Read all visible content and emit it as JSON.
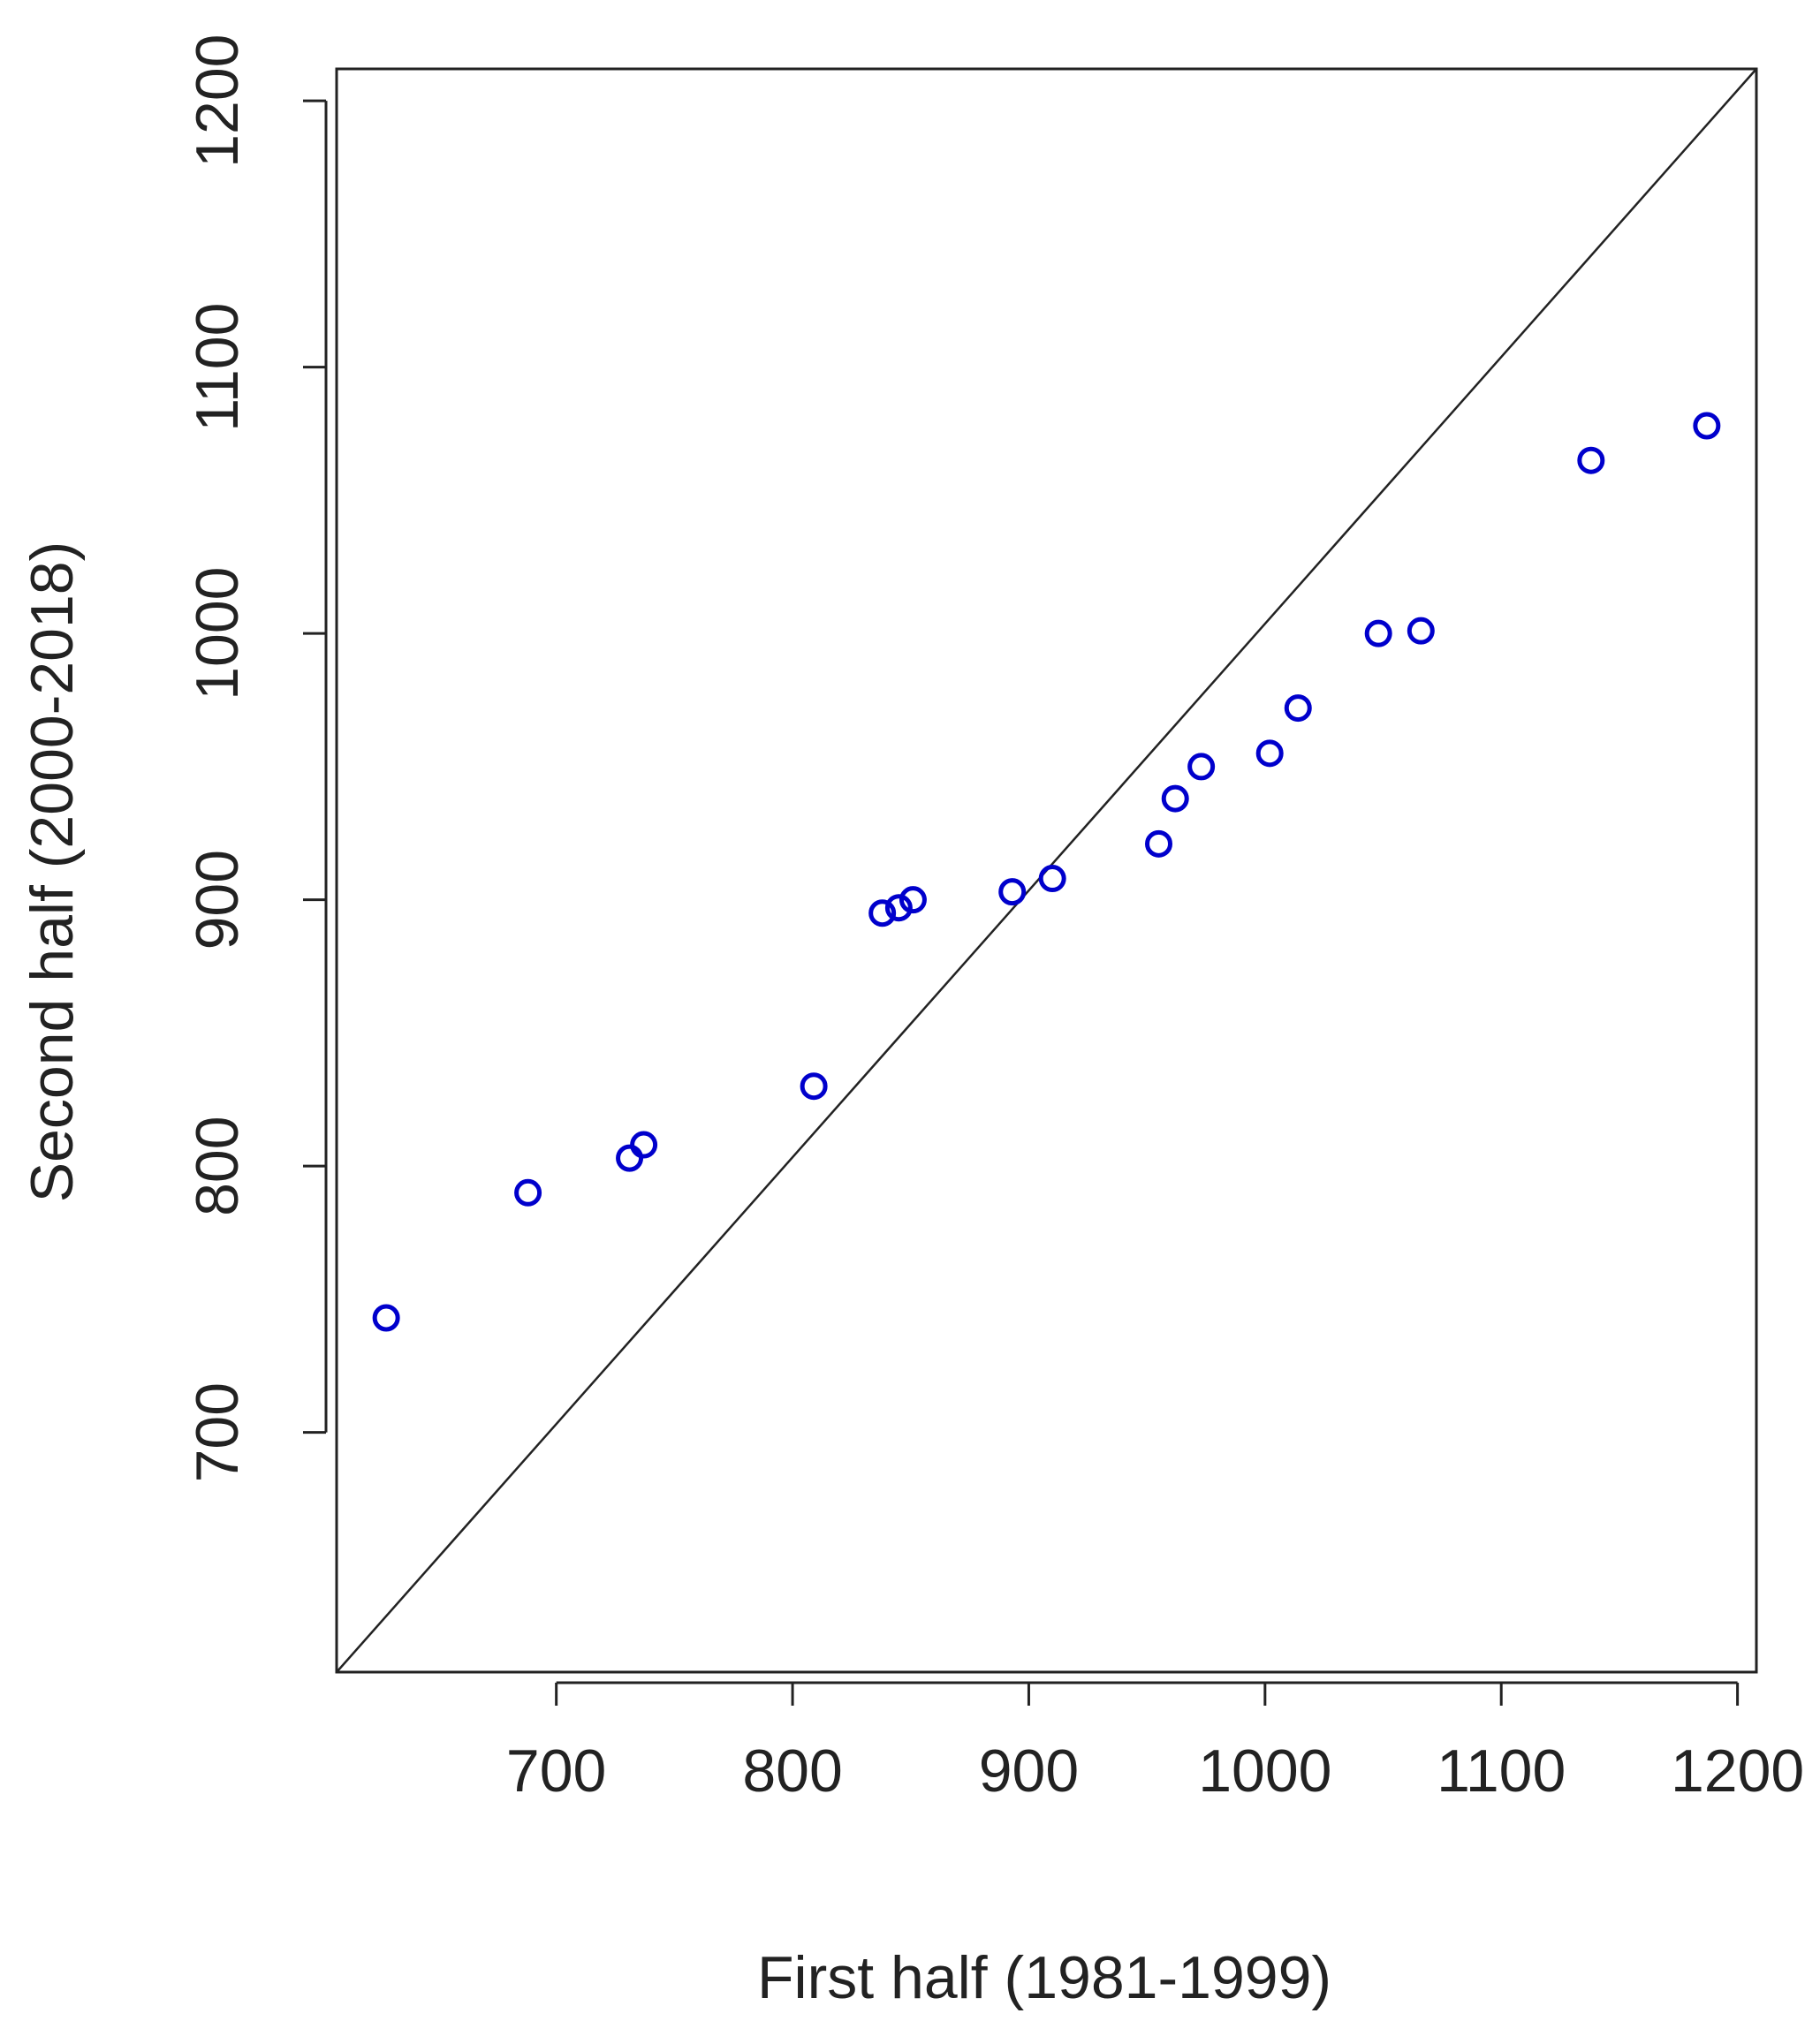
{
  "chart_data": {
    "type": "scatter",
    "title": "",
    "xlabel": "First half (1981-1999)",
    "ylabel": "Second half (2000-2018)",
    "xlim": [
      607,
      1208
    ],
    "ylim": [
      610,
      1212
    ],
    "xticks": [
      700,
      800,
      900,
      1000,
      1100,
      1200
    ],
    "yticks": [
      700,
      800,
      900,
      1000,
      1100,
      1200
    ],
    "grid": false,
    "reference_line": {
      "type": "identity",
      "x": [
        607,
        1208
      ],
      "y": [
        610,
        1212
      ]
    },
    "series": [
      {
        "color": "#0000cc",
        "marker": "open-circle",
        "points": [
          {
            "x": 628,
            "y": 743
          },
          {
            "x": 688,
            "y": 790
          },
          {
            "x": 731,
            "y": 803
          },
          {
            "x": 737,
            "y": 808
          },
          {
            "x": 809,
            "y": 830
          },
          {
            "x": 838,
            "y": 895
          },
          {
            "x": 845,
            "y": 897
          },
          {
            "x": 851,
            "y": 900
          },
          {
            "x": 893,
            "y": 903
          },
          {
            "x": 910,
            "y": 908
          },
          {
            "x": 955,
            "y": 921
          },
          {
            "x": 962,
            "y": 938
          },
          {
            "x": 973,
            "y": 950
          },
          {
            "x": 1002,
            "y": 955
          },
          {
            "x": 1014,
            "y": 972
          },
          {
            "x": 1048,
            "y": 1000
          },
          {
            "x": 1066,
            "y": 1001
          },
          {
            "x": 1138,
            "y": 1065
          },
          {
            "x": 1187,
            "y": 1078
          }
        ]
      }
    ]
  }
}
